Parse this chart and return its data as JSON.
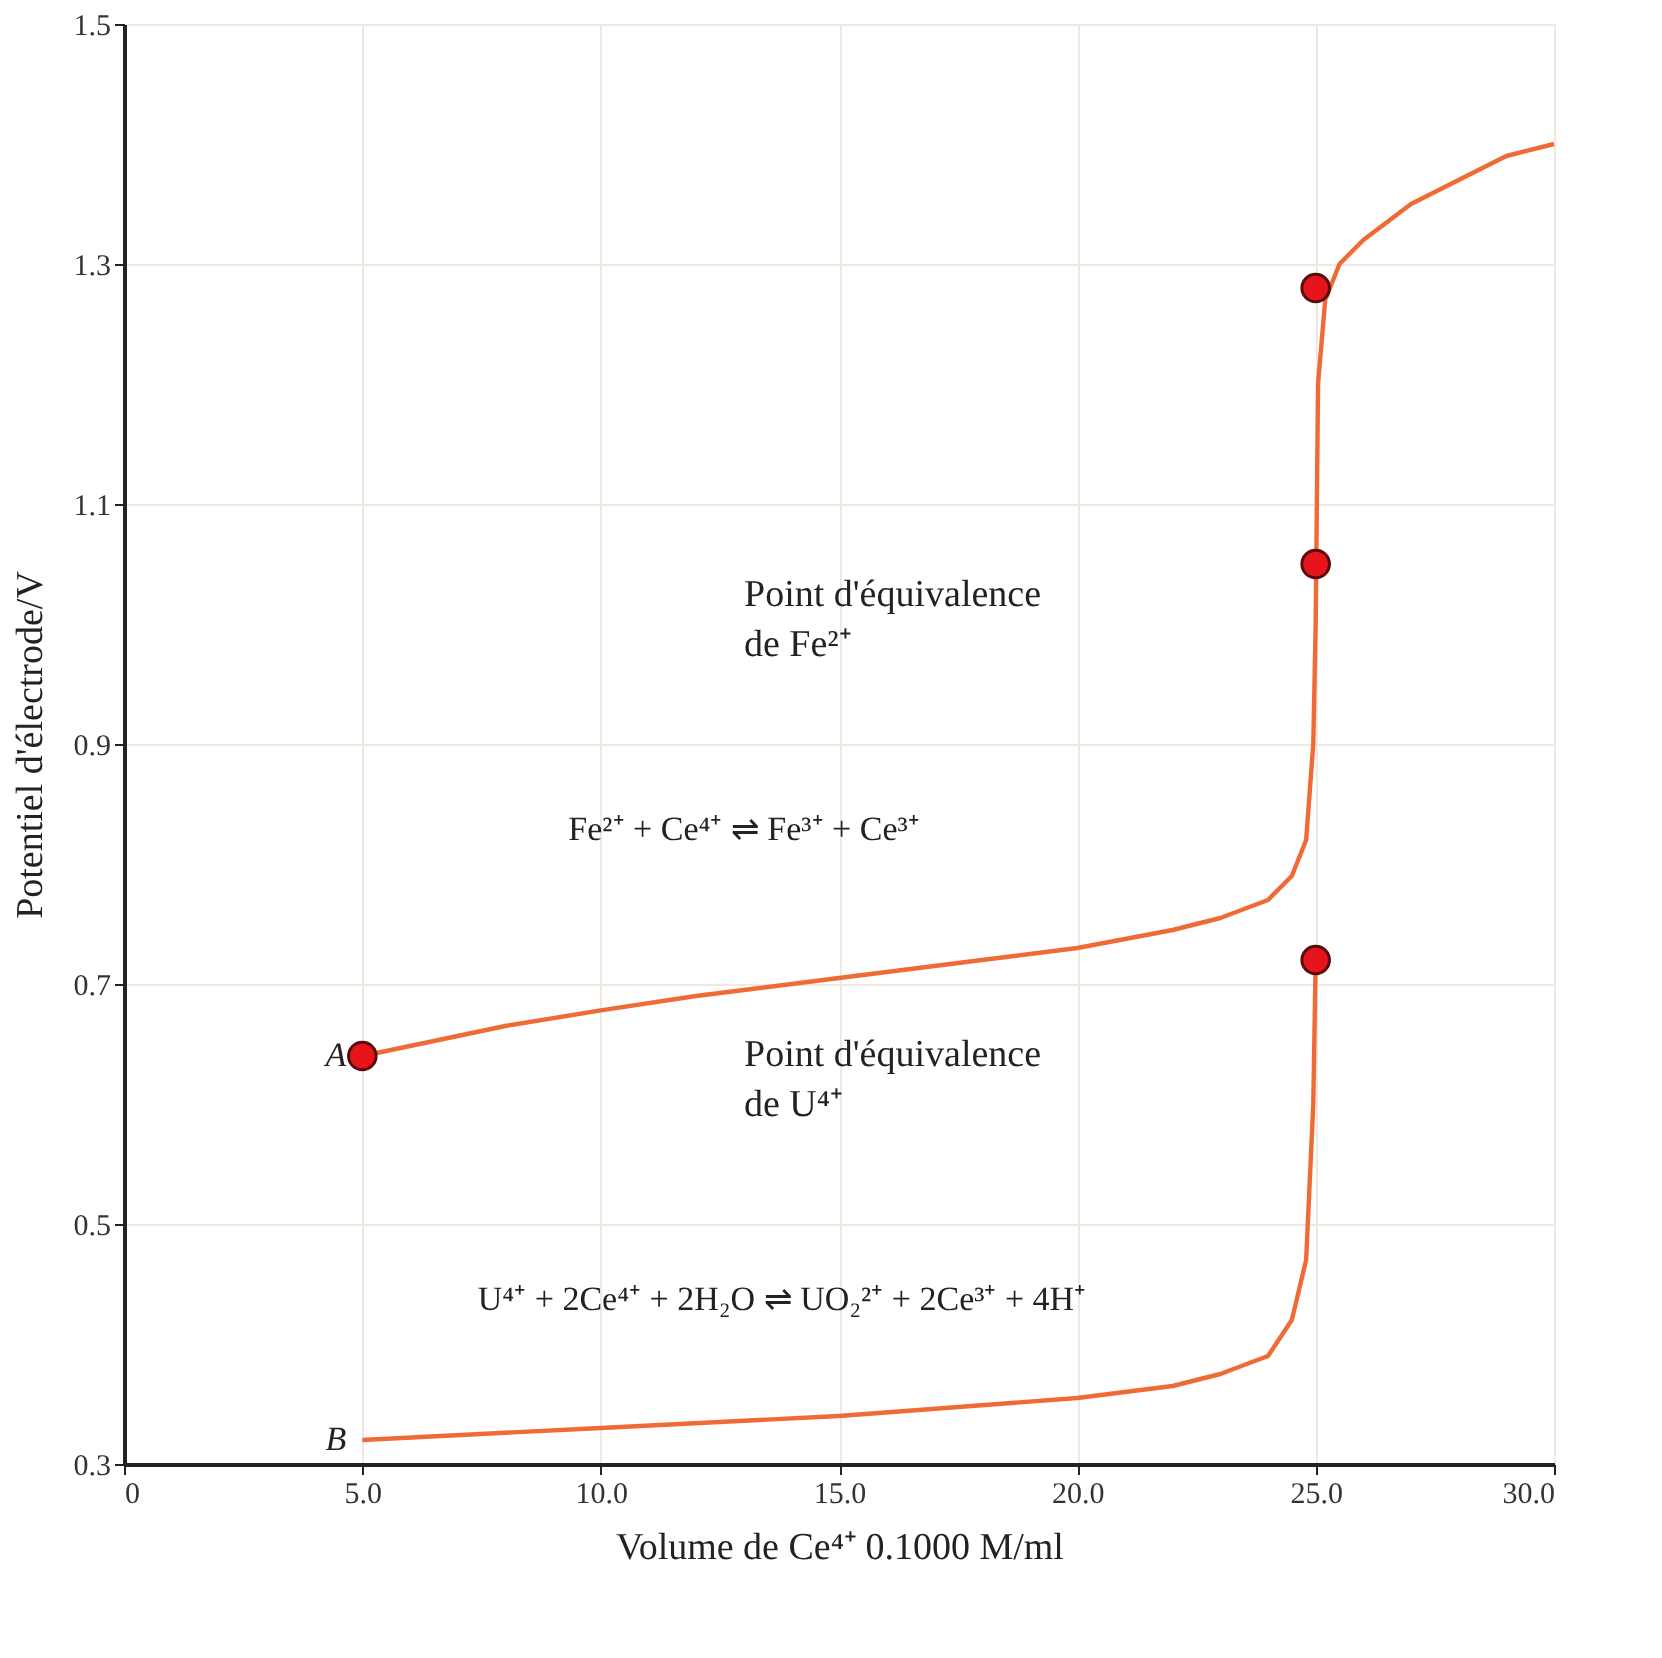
{
  "chart_data": {
    "type": "line",
    "xlabel": "Volume de Ce⁴⁺ 0.1000 M/ml",
    "ylabel": "Potentiel d'électrode/V",
    "xlim": [
      0,
      30
    ],
    "ylim": [
      0.3,
      1.5
    ],
    "xticks": [
      0,
      {
        "value": 5,
        "label": "5.0"
      },
      {
        "value": 10,
        "label": "10.0"
      },
      {
        "value": 15,
        "label": "15.0"
      },
      {
        "value": 20,
        "label": "20.0"
      },
      {
        "value": 25,
        "label": "25.0"
      },
      {
        "value": 30,
        "label": "30.0"
      }
    ],
    "yticks": [
      0.3,
      0.5,
      0.7,
      0.9,
      1.1,
      1.3,
      1.5
    ],
    "grid": true,
    "series": [
      {
        "name": "A",
        "color": "#f06a35",
        "line_style": "solid",
        "x": [
          5,
          8,
          10,
          12,
          15,
          18,
          20,
          22,
          23,
          24,
          24.5,
          24.8,
          24.95,
          25,
          25.05,
          25.2,
          25.5,
          26,
          27,
          28,
          29,
          30
        ],
        "values": [
          0.64,
          0.665,
          0.678,
          0.69,
          0.705,
          0.72,
          0.73,
          0.745,
          0.755,
          0.77,
          0.79,
          0.82,
          0.9,
          1.0,
          1.2,
          1.27,
          1.3,
          1.32,
          1.35,
          1.37,
          1.39,
          1.4
        ]
      },
      {
        "name": "B",
        "color": "#f06a35",
        "line_style": "solid",
        "x": [
          5,
          10,
          15,
          20,
          22,
          23,
          24,
          24.5,
          24.8,
          24.95,
          25
        ],
        "values": [
          0.32,
          0.33,
          0.34,
          0.355,
          0.365,
          0.375,
          0.39,
          0.42,
          0.47,
          0.6,
          0.72
        ]
      },
      {
        "type": "scatter",
        "color": "#e8141c",
        "marker": "circle",
        "x": [
          5,
          25,
          25,
          25
        ],
        "values": [
          0.64,
          0.72,
          1.05,
          1.28
        ]
      }
    ],
    "annotations": [
      "Fe²⁺ + Ce⁴⁺ ⇌ Fe³⁺ + Ce³⁺",
      "U⁴⁺ + 2Ce⁴⁺ + 2H₂O ⇌ UO₂²⁺ + 2Ce³⁺ + 4H⁺",
      "Point d'équivalence\nde Fe²⁺",
      "Point d'équivalence\nde U⁴⁺"
    ]
  }
}
